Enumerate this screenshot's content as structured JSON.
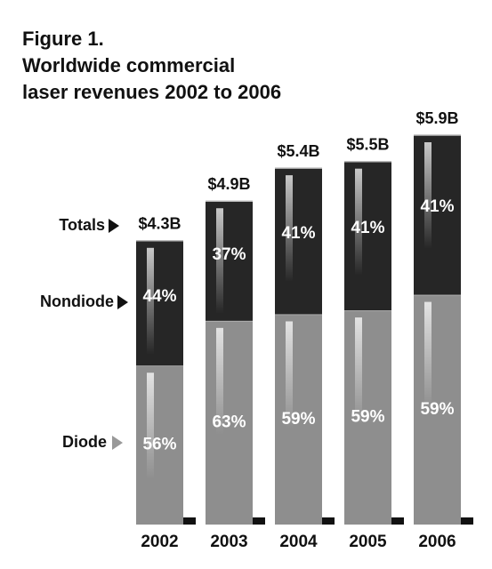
{
  "chart_data": {
    "type": "stacked_bar",
    "title": [
      "Figure 1.",
      "Worldwide commercial",
      "laser revenues 2002 to 2006"
    ],
    "categories": [
      "2002",
      "2003",
      "2004",
      "2005",
      "2006"
    ],
    "totals": {
      "name": "Totals",
      "values": [
        4.3,
        4.9,
        5.4,
        5.5,
        5.9
      ],
      "value_labels": [
        "$4.3B",
        "$4.9B",
        "$5.4B",
        "$5.5B",
        "$5.9B"
      ]
    },
    "series": [
      {
        "name": "Diode",
        "color": "#8e8e8e",
        "values": [
          56,
          63,
          59,
          59,
          59
        ],
        "value_labels": [
          "56%",
          "63%",
          "59%",
          "59%",
          "59%"
        ]
      },
      {
        "name": "Nondiode",
        "color": "#262626",
        "values": [
          44,
          37,
          41,
          41,
          41
        ],
        "value_labels": [
          "44%",
          "37%",
          "41%",
          "41%",
          "41%"
        ]
      }
    ]
  }
}
